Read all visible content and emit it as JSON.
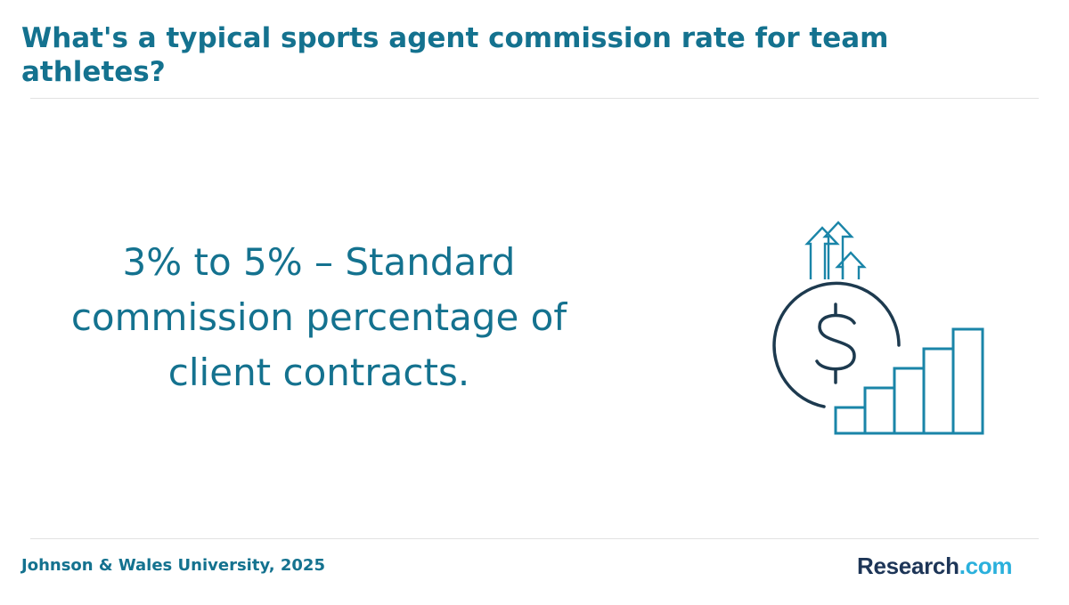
{
  "header": {
    "title": "What's a typical sports agent commission rate for team athletes?"
  },
  "main": {
    "statement": "3% to 5% – Standard commission percentage of client contracts.",
    "illustration_icon": "dollar-growth-chart-icon"
  },
  "footer": {
    "source": "Johnson & Wales University, 2025",
    "logo": {
      "text_main": "Research",
      "text_suffix": ".com"
    }
  },
  "colors": {
    "accent": "#14728f",
    "icon_dark": "#1d3a4f",
    "icon_light": "#1a85a8",
    "logo_dark": "#1d3557",
    "logo_light": "#2ab0dc",
    "divider": "#e2e2e2"
  }
}
